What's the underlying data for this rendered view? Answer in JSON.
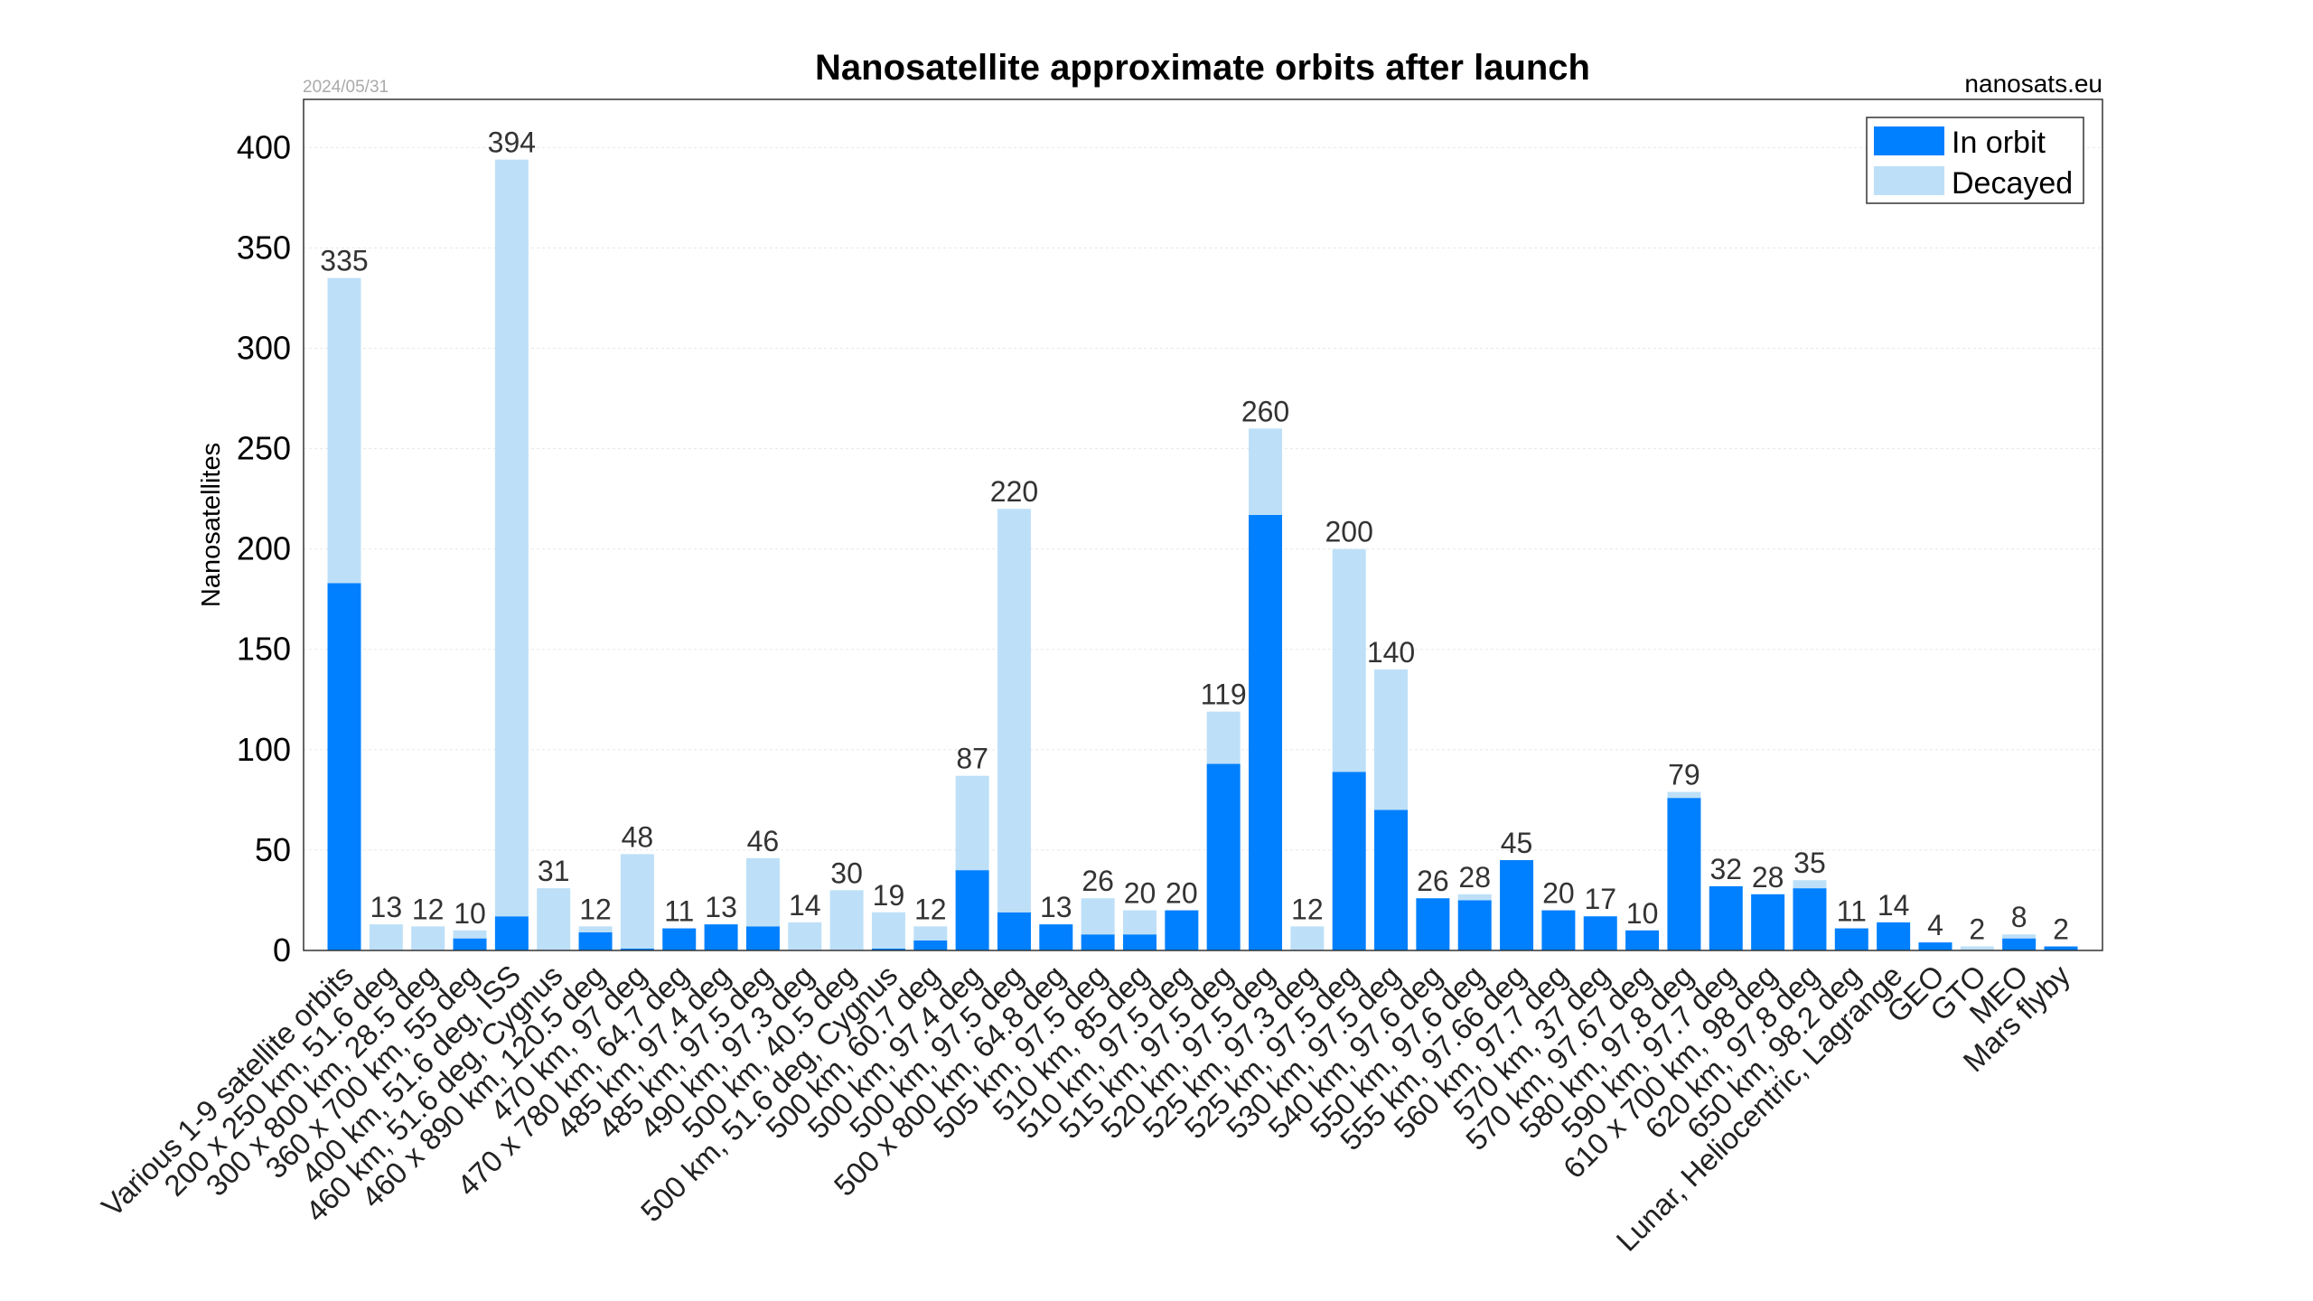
{
  "chart_data": {
    "type": "bar",
    "stacked": true,
    "title": "Nanosatellite approximate orbits after launch",
    "date": "2024/05/31",
    "source": "nanosats.eu",
    "xlabel": "",
    "ylabel": "Nanosatellites",
    "ylim": [
      0,
      424
    ],
    "yticks": [
      0,
      50,
      100,
      150,
      200,
      250,
      300,
      350,
      400
    ],
    "grid": true,
    "legend_position": "top-right",
    "colors": {
      "in_orbit": "#0080ff",
      "decayed": "#bde0f8"
    },
    "categories": [
      "Various 1-9 satellite orbits",
      "200 x 250 km, 51.6 deg",
      "300 x 800 km, 28.5 deg",
      "360 x 700 km, 55 deg",
      "400 km, 51.6 deg, ISS",
      "460 km, 51.6 deg, Cygnus",
      "460 x 890 km, 120.5 deg",
      "470 km, 97 deg",
      "470 x 780 km, 64.7 deg",
      "485 km, 97.4 deg",
      "485 km, 97.5 deg",
      "490 km, 97.3 deg",
      "500 km, 40.5 deg",
      "500 km, 51.6 deg, Cygnus",
      "500 km, 60.7 deg",
      "500 km, 97.4 deg",
      "500 km, 97.5 deg",
      "500 x 800 km, 64.8 deg",
      "505 km, 97.5 deg",
      "510 km, 85 deg",
      "510 km, 97.5 deg",
      "515 km, 97.5 deg",
      "520 km, 97.5 deg",
      "525 km, 97.3 deg",
      "525 km, 97.5 deg",
      "530 km, 97.5 deg",
      "540 km, 97.6 deg",
      "550 km, 97.6 deg",
      "555 km, 97.66 deg",
      "560 km, 97.7 deg",
      "570 km, 37 deg",
      "570 km, 97.67 deg",
      "580 km, 97.8 deg",
      "590 km, 97.7 deg",
      "610 x 700 km, 98 deg",
      "620 km, 97.8 deg",
      "650 km, 98.2 deg",
      "Lunar, Heliocentric, Lagrange",
      "GEO",
      "GTO",
      "MEO",
      "Mars flyby"
    ],
    "totals": [
      335,
      13,
      12,
      10,
      394,
      31,
      12,
      48,
      11,
      13,
      46,
      14,
      30,
      19,
      12,
      87,
      220,
      13,
      26,
      20,
      20,
      119,
      260,
      12,
      200,
      140,
      26,
      28,
      45,
      20,
      17,
      10,
      79,
      32,
      28,
      35,
      11,
      14,
      4,
      2,
      8,
      2
    ],
    "series": [
      {
        "name": "In orbit",
        "values": [
          183,
          0,
          0,
          6,
          17,
          0,
          9,
          1,
          11,
          13,
          12,
          0,
          0,
          1,
          5,
          40,
          19,
          13,
          8,
          8,
          20,
          93,
          217,
          0,
          89,
          70,
          26,
          25,
          45,
          20,
          17,
          10,
          76,
          32,
          28,
          31,
          11,
          14,
          4,
          0,
          6,
          2
        ]
      },
      {
        "name": "Decayed",
        "values": [
          152,
          13,
          12,
          4,
          377,
          31,
          3,
          47,
          0,
          0,
          34,
          14,
          30,
          18,
          7,
          47,
          201,
          0,
          18,
          12,
          0,
          26,
          43,
          12,
          111,
          70,
          0,
          3,
          0,
          0,
          0,
          0,
          3,
          0,
          0,
          4,
          0,
          0,
          0,
          2,
          2,
          0
        ]
      }
    ]
  }
}
